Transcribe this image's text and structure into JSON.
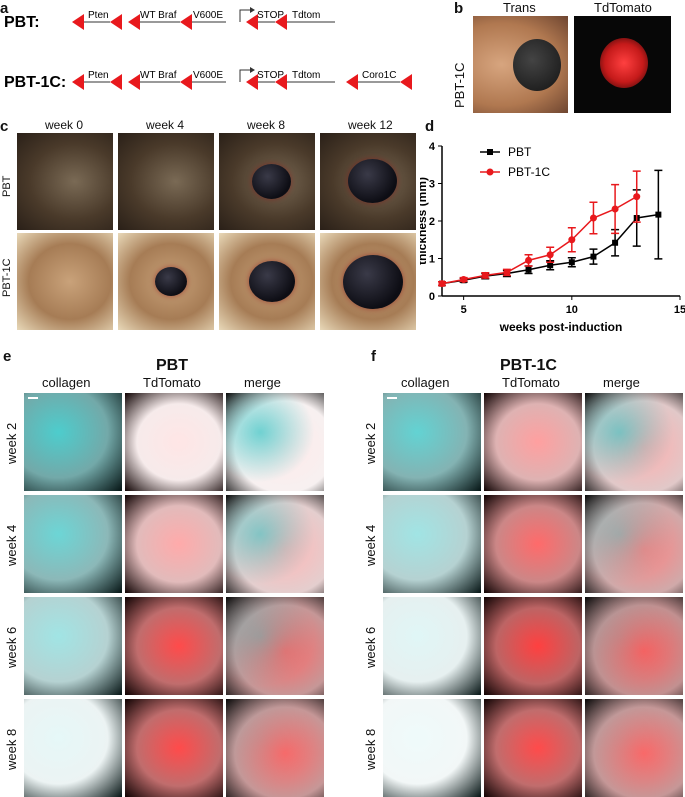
{
  "panel_a": {
    "letter": "a",
    "constructs": [
      {
        "name": "PBT:",
        "elements": [
          "Pten",
          "WT Braf",
          "V600E",
          "STOP",
          "Tdtom"
        ]
      },
      {
        "name": "PBT-1C:",
        "elements": [
          "Pten",
          "WT Braf",
          "V600E",
          "STOP",
          "Tdtom",
          "Coro1C"
        ]
      }
    ]
  },
  "panel_b": {
    "letter": "b",
    "row_label": "PBT-1C",
    "columns": [
      "Trans",
      "TdTomato"
    ]
  },
  "panel_c": {
    "letter": "c",
    "columns": [
      "week 0",
      "week 4",
      "week 8",
      "week 12"
    ],
    "rows": [
      "PBT",
      "PBT-1C"
    ],
    "tumor_fraction": [
      [
        0,
        0,
        0.55,
        0.7
      ],
      [
        0,
        0.45,
        0.65,
        0.85
      ]
    ]
  },
  "panel_d": {
    "letter": "d",
    "chart_data": {
      "type": "line",
      "xlabel": "weeks post-induction",
      "ylabel": "thickness (mm)",
      "xlim": [
        4,
        15
      ],
      "ylim": [
        0,
        4
      ],
      "xticks": [
        5,
        10,
        15
      ],
      "yticks": [
        0,
        1,
        2,
        3,
        4
      ],
      "legend_position": "top-left",
      "series": [
        {
          "name": "PBT",
          "color": "#000000",
          "x": [
            4,
            5,
            6,
            7,
            8,
            9,
            10,
            11,
            12,
            13,
            14
          ],
          "y": [
            0.33,
            0.42,
            0.53,
            0.6,
            0.7,
            0.82,
            0.9,
            1.05,
            1.42,
            2.08,
            2.17
          ],
          "err": [
            0.05,
            0.05,
            0.07,
            0.08,
            0.1,
            0.12,
            0.12,
            0.2,
            0.35,
            0.75,
            1.18
          ]
        },
        {
          "name": "PBT-1C",
          "color": "#e8191d",
          "x": [
            4,
            5,
            6,
            7,
            8,
            9,
            10,
            11,
            12,
            13
          ],
          "y": [
            0.33,
            0.44,
            0.55,
            0.63,
            0.95,
            1.1,
            1.5,
            2.08,
            2.32,
            2.65
          ],
          "err": [
            0.05,
            0.05,
            0.07,
            0.08,
            0.15,
            0.2,
            0.32,
            0.42,
            0.65,
            0.68
          ]
        }
      ]
    }
  },
  "panel_e": {
    "letter": "e",
    "title": "PBT",
    "columns": [
      "collagen",
      "TdTomato",
      "merge"
    ],
    "rows": [
      "week 2",
      "week 4",
      "week 6",
      "week 8"
    ],
    "collagen_level": [
      0.85,
      0.7,
      0.45,
      0.12
    ],
    "tdtomato_level": [
      0.12,
      0.4,
      0.85,
      0.85
    ]
  },
  "panel_f": {
    "letter": "f",
    "title": "PBT-1C",
    "columns": [
      "collagen",
      "TdTomato",
      "merge"
    ],
    "rows": [
      "week 2",
      "week 4",
      "week 6",
      "week 8"
    ],
    "collagen_level": [
      0.75,
      0.45,
      0.15,
      0.08
    ],
    "tdtomato_level": [
      0.45,
      0.7,
      0.9,
      0.85
    ]
  },
  "colors": {
    "red": "#e8191d",
    "cyan": "#2ec4c4",
    "tdtomato": "#ff2b2b"
  }
}
